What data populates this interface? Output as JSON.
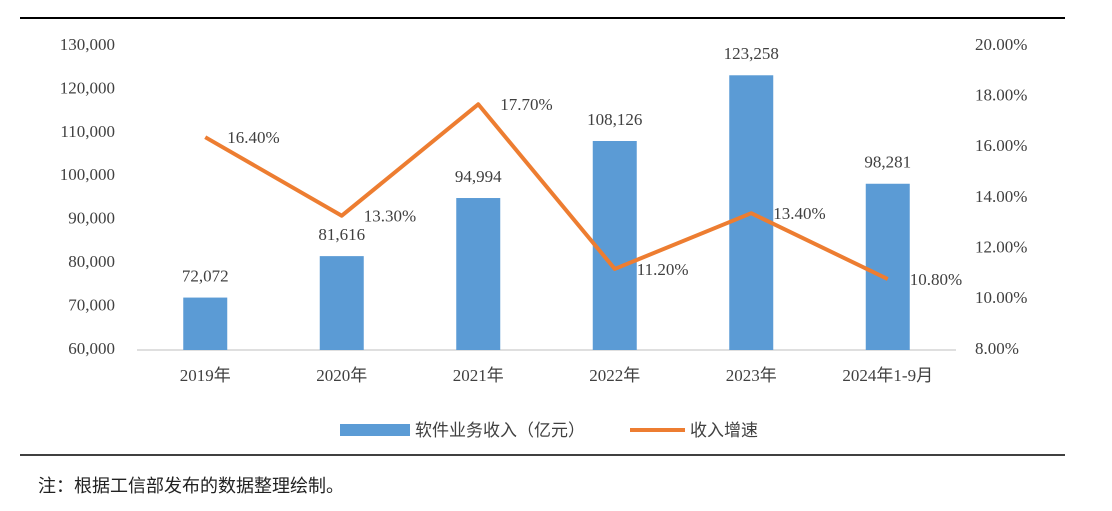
{
  "chart_data": {
    "type": "combo",
    "categories": [
      "2019年",
      "2020年",
      "2021年",
      "2022年",
      "2023年",
      "2024年1-9月"
    ],
    "series": [
      {
        "name": "软件业务收入（亿元）",
        "type": "bar",
        "color": "#5b9bd5",
        "axis": "y",
        "values": [
          72072,
          81616,
          94994,
          108126,
          123258,
          98281
        ],
        "value_labels": [
          "72,072",
          "81,616",
          "94,994",
          "108,126",
          "123,258",
          "98,281"
        ]
      },
      {
        "name": "收入增速",
        "type": "line",
        "color": "#ed7d31",
        "axis": "y2",
        "values": [
          16.4,
          13.3,
          17.7,
          11.2,
          13.4,
          10.8
        ],
        "value_labels": [
          "16.40%",
          "13.30%",
          "17.70%",
          "11.20%",
          "13.40%",
          "10.80%"
        ]
      }
    ],
    "ylim": [
      60000,
      130000
    ],
    "yticks": [
      {
        "value": 60000,
        "label": "60,000"
      },
      {
        "value": 70000,
        "label": "70,000"
      },
      {
        "value": 80000,
        "label": "80,000"
      },
      {
        "value": 90000,
        "label": "90,000"
      },
      {
        "value": 100000,
        "label": "100,000"
      },
      {
        "value": 110000,
        "label": "110,000"
      },
      {
        "value": 120000,
        "label": "120,000"
      },
      {
        "value": 130000,
        "label": "130,000"
      }
    ],
    "y2lim": [
      8,
      20
    ],
    "y2ticks": [
      {
        "value": 8,
        "label": "8.00%"
      },
      {
        "value": 10,
        "label": "10.00%"
      },
      {
        "value": 12,
        "label": "12.00%"
      },
      {
        "value": 14,
        "label": "14.00%"
      },
      {
        "value": 16,
        "label": "16.00%"
      },
      {
        "value": 18,
        "label": "18.00%"
      },
      {
        "value": 20,
        "label": "20.00%"
      }
    ],
    "grid": false,
    "legend": "bottom",
    "note": "注：根据工信部发布的数据整理绘制。"
  }
}
